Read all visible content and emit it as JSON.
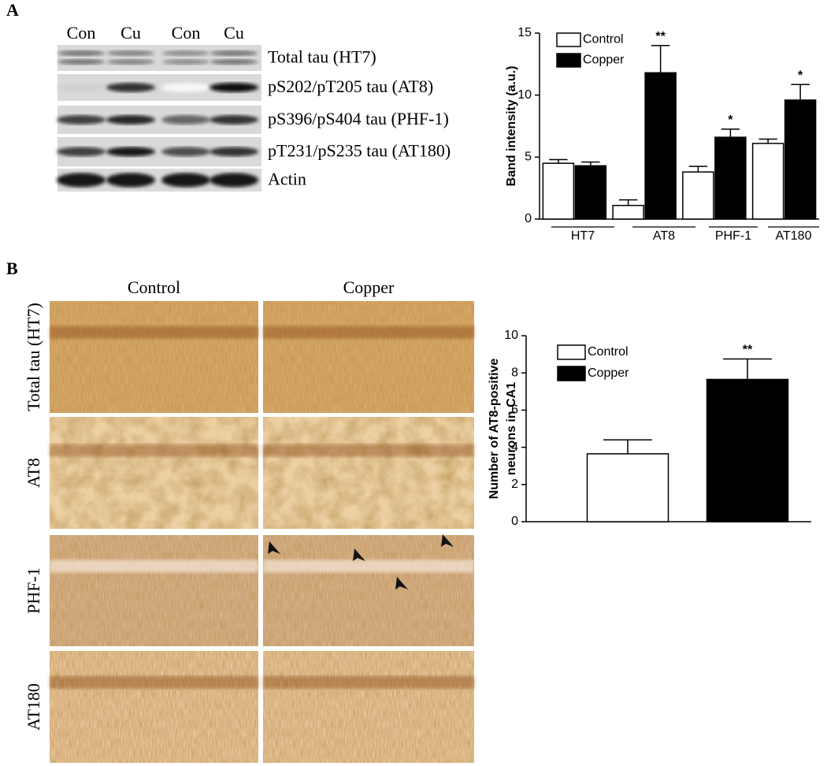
{
  "panel_labels": [
    "A",
    "B"
  ],
  "blot": {
    "lanes": [
      "Con",
      "Cu",
      "Con",
      "Cu"
    ],
    "bands": [
      "Total tau (HT7)",
      "pS202/pT205 tau (AT8)",
      "pS396/pS404 tau (PHF-1)",
      "pT231/pS235 tau (AT180)",
      "Actin"
    ]
  },
  "micrographs": {
    "columns": [
      "Control",
      "Copper"
    ],
    "rows": [
      "Total tau (HT7)",
      "AT8",
      "PHF-1",
      "AT180"
    ]
  },
  "chart_data": [
    {
      "type": "bar",
      "ylabel": [
        "Band intensity (a.u.)"
      ],
      "categories": [
        "HT7",
        "AT8",
        "PHF-1",
        "AT180"
      ],
      "series": [
        {
          "name": "Control",
          "color": "#ffffff",
          "values": [
            4.5,
            1.1,
            3.8,
            6.1
          ],
          "errors": [
            0.3,
            0.45,
            0.45,
            0.35
          ]
        },
        {
          "name": "Copper",
          "color": "#000000",
          "values": [
            4.3,
            11.8,
            6.6,
            9.6
          ],
          "errors": [
            0.3,
            2.2,
            0.65,
            1.25
          ],
          "significance": [
            null,
            "**",
            "*",
            "*"
          ]
        }
      ],
      "ylim": [
        0,
        15
      ],
      "yticks": [
        0,
        5,
        10,
        15
      ],
      "legend": "top-left"
    },
    {
      "type": "bar",
      "ylabel": [
        "Number of AT8-positive",
        "neurons in CA1"
      ],
      "categories": [
        null
      ],
      "series": [
        {
          "name": "Control",
          "color": "#ffffff",
          "values": [
            3.65
          ],
          "errors": [
            0.75
          ]
        },
        {
          "name": "Copper",
          "color": "#000000",
          "values": [
            7.65
          ],
          "errors": [
            1.1
          ],
          "significance": [
            "**"
          ]
        }
      ],
      "ylim": [
        0,
        10
      ],
      "yticks": [
        0,
        2,
        4,
        6,
        8,
        10
      ],
      "legend": "top-left"
    }
  ]
}
